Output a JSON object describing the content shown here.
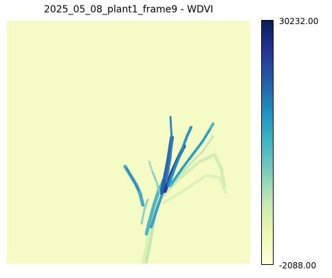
{
  "chart_data": {
    "type": "heatmap",
    "title": "2025_05_08_plant1_frame9 - WDVI",
    "xlabel": "",
    "ylabel": "",
    "axes_visible": false,
    "grid": false,
    "colormap": "YlGnBu",
    "colorbar": {
      "placement": "right",
      "min": -2088.0,
      "max": 30232.0,
      "min_label": "-2088.00",
      "max_label": "30232.00"
    },
    "background_value_approx": -2088.0,
    "content_description": ""
  },
  "colors": {
    "low": "#f6fbc6",
    "mid_low": "#c7e9b4",
    "mid": "#41b6c4",
    "mid_high": "#225ea8",
    "high": "#081d58"
  }
}
